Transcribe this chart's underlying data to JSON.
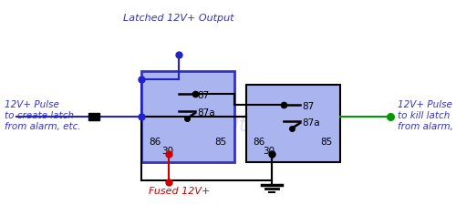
{
  "bg_color": "#ffffff",
  "relay1_fill": "#aab4ee",
  "relay2_fill": "#aab4ee",
  "relay1_border": "#3333bb",
  "relay2_border": "#000000",
  "label_color": "#3333cc",
  "text_latched_output": "Latched 12V+ Output",
  "text_fused": "Fused 12V+",
  "text_pulse_left_1": "12V+ Pulse",
  "text_pulse_left_2": "to create latch",
  "text_pulse_left_3": "from alarm, etc.",
  "text_pulse_right_1": "12V+ Pulse",
  "text_pulse_right_2": "to kill latch",
  "text_pulse_right_3": "from alarm, etc.",
  "watermark": "the12volt.com",
  "wire_color_blue": "#2222cc",
  "wire_color_red": "#cc0000",
  "wire_color_black": "#000000",
  "wire_color_green": "#009900"
}
